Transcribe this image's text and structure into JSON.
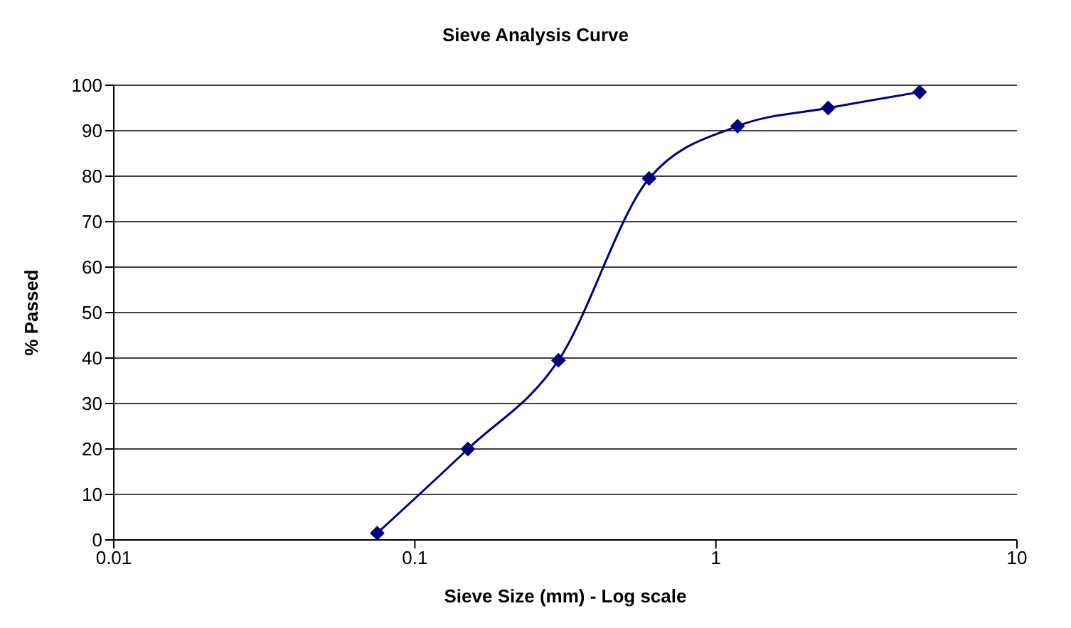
{
  "chart_data": {
    "type": "line",
    "title": "Sieve Analysis Curve",
    "xlabel": "Sieve Size (mm) - Log scale",
    "ylabel": "% Passed",
    "x": [
      0.075,
      0.15,
      0.3,
      0.6,
      1.18,
      2.36,
      4.75
    ],
    "series": [
      {
        "color": "#000080",
        "values": [
          1.5,
          20,
          39.5,
          79.5,
          91,
          95,
          98.5
        ]
      }
    ],
    "log": "x",
    "xlim": [
      0.01,
      10
    ],
    "xticks": [
      0.01,
      0.1,
      1,
      10
    ],
    "ylim": [
      0,
      100
    ],
    "yticks": [
      0,
      10,
      20,
      30,
      40,
      50,
      60,
      70,
      80,
      90,
      100
    ],
    "grid": "y",
    "legend": false,
    "marker": "diamond",
    "line_style": "solid"
  }
}
